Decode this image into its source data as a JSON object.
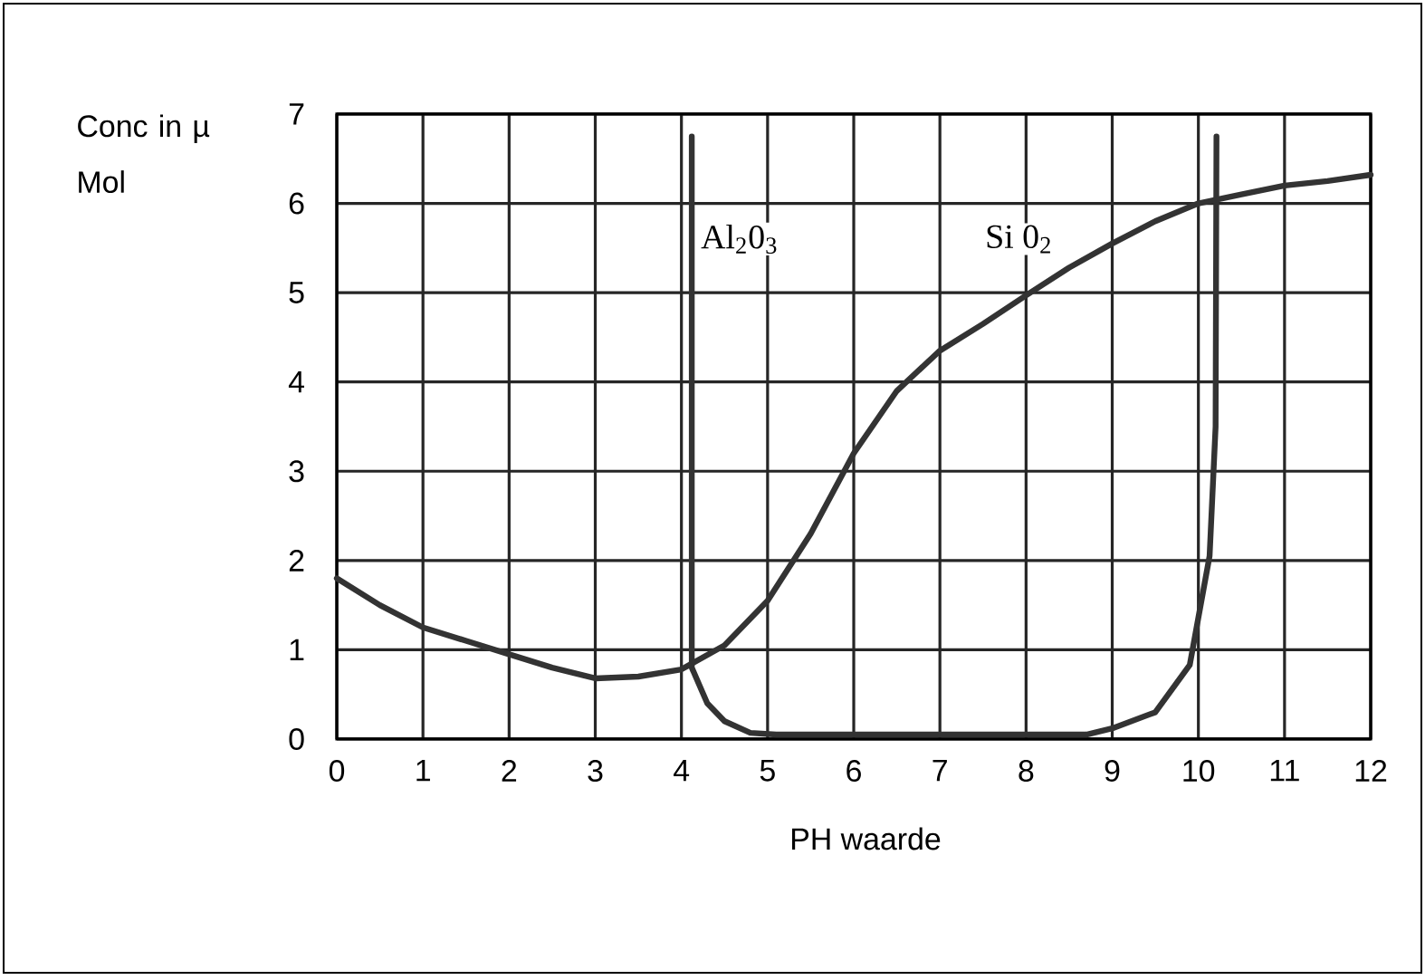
{
  "chart_data": {
    "type": "line",
    "xlabel": "PH waarde",
    "ylabel": "Conc in µ Mol",
    "xlim": [
      0,
      12
    ],
    "ylim": [
      0,
      7
    ],
    "xticks": [
      0,
      1,
      2,
      3,
      4,
      5,
      6,
      7,
      8,
      9,
      10,
      11,
      12
    ],
    "yticks": [
      0,
      1,
      2,
      3,
      4,
      5,
      6,
      7
    ],
    "grid": true,
    "marker": "none",
    "line_style": "solid",
    "series": [
      {
        "name": "Al$_{2}$0$_{3}$",
        "color": "#333333",
        "x": [
          4.12,
          4.12,
          4.3,
          4.5,
          4.8,
          5.1,
          8.7,
          9.0,
          9.5,
          9.9,
          10.13,
          10.2,
          10.21
        ],
        "values": [
          6.75,
          0.8,
          0.4,
          0.2,
          0.07,
          0.05,
          0.05,
          0.12,
          0.3,
          0.83,
          2.05,
          3.5,
          6.75
        ]
      },
      {
        "name": "Si 0$_{2}$",
        "color": "#333333",
        "x": [
          0,
          0.5,
          1,
          1.5,
          2,
          2.5,
          3,
          3.5,
          4,
          4.5,
          5,
          5.5,
          6,
          6.5,
          7,
          7.5,
          8,
          8.5,
          9,
          9.5,
          10,
          10.5,
          11,
          11.5,
          12
        ],
        "values": [
          1.8,
          1.5,
          1.25,
          1.1,
          0.95,
          0.8,
          0.68,
          0.7,
          0.78,
          1.05,
          1.55,
          2.3,
          3.2,
          3.9,
          4.35,
          4.65,
          4.97,
          5.28,
          5.55,
          5.8,
          6.0,
          6.1,
          6.2,
          6.25,
          6.32
        ]
      }
    ]
  }
}
